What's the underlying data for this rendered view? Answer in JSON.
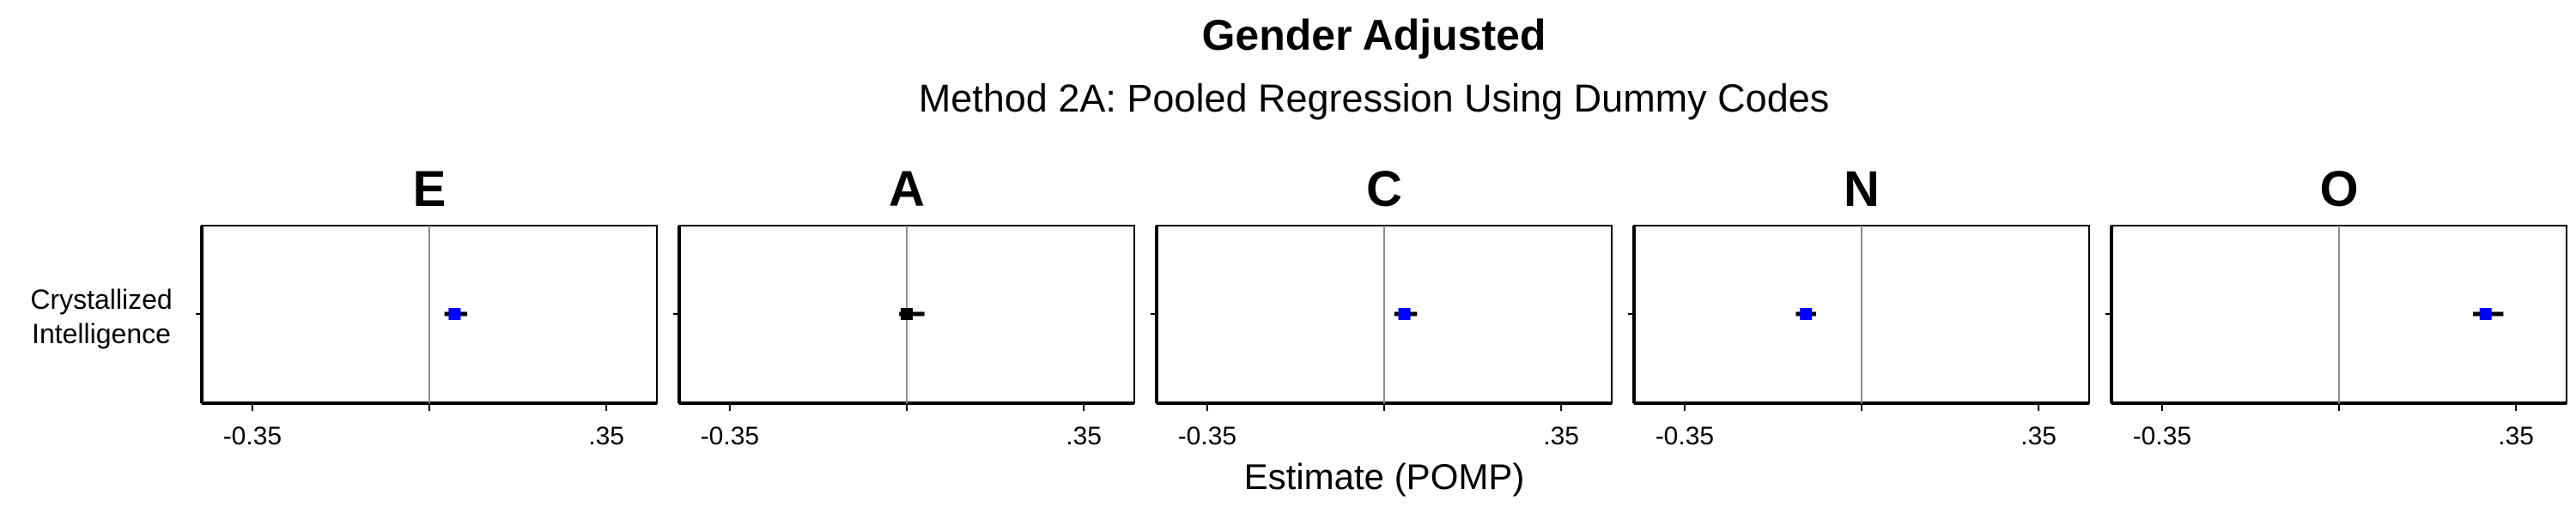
{
  "chart_data": {
    "type": "scatter",
    "title": "Gender Adjusted",
    "subtitle": "Method 2A: Pooled Regression Using Dummy Codes",
    "xlabel": "Estimate (POMP)",
    "xlim": [
      -0.45,
      0.45
    ],
    "x_ticks": [
      {
        "value": -0.35,
        "label": "-0.35"
      },
      {
        "value": 0.0,
        "label": ""
      },
      {
        "value": 0.35,
        "label": ".35"
      }
    ],
    "y_label_lines": [
      "Crystallized",
      "Intelligence"
    ],
    "reference_line": 0,
    "panels": [
      {
        "name": "E",
        "estimate": 0.05,
        "ci": [
          0.03,
          0.075
        ],
        "color": "#0000ff"
      },
      {
        "name": "A",
        "estimate": 0.0,
        "ci": [
          -0.015,
          0.035
        ],
        "color": "#000000"
      },
      {
        "name": "C",
        "estimate": 0.04,
        "ci": [
          0.02,
          0.065
        ],
        "color": "#0000ff"
      },
      {
        "name": "N",
        "estimate": -0.11,
        "ci": [
          -0.13,
          -0.09
        ],
        "color": "#0000ff"
      },
      {
        "name": "O",
        "estimate": 0.29,
        "ci": [
          0.265,
          0.325
        ],
        "color": "#0000ff"
      }
    ]
  }
}
